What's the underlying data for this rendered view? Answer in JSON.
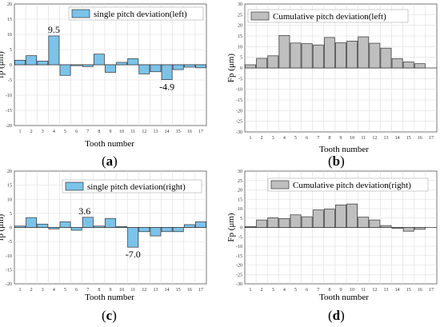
{
  "colors": {
    "blue": "#7cc3ea",
    "gray": "#bfbfbf",
    "grid": "#dddddd",
    "axis": "#555555"
  },
  "chart_data": [
    {
      "id": "a",
      "type": "bar",
      "legend": "single pitch deviation(left)",
      "legend_placement": "top-right",
      "color": "blue",
      "xlabel": "Tooth number",
      "ylabel": "fp (μm)",
      "ylim": [
        -20,
        20
      ],
      "yticks": [
        20,
        15,
        10,
        5,
        0,
        -5,
        -10,
        -15,
        -20
      ],
      "categories": [
        "1",
        "2",
        "3",
        "4",
        "5",
        "6",
        "7",
        "8",
        "9",
        "10",
        "11",
        "12",
        "13",
        "14",
        "15",
        "16",
        "17"
      ],
      "values": [
        1.5,
        3.0,
        1.2,
        9.5,
        -3.5,
        -0.3,
        -0.6,
        3.5,
        -2.5,
        0.8,
        2.0,
        -3.0,
        -2.3,
        -4.9,
        -1.6,
        -0.8,
        -1.0
      ],
      "annotations": [
        {
          "index": 3,
          "text": "9.5"
        },
        {
          "index": 13,
          "text": "-4.9"
        }
      ],
      "caption_letter": "a",
      "grid": true
    },
    {
      "id": "b",
      "type": "bar",
      "legend": "Cumulative pitch deviation(left)",
      "legend_placement": "top-left",
      "color": "gray",
      "xlabel": "Tooth number",
      "ylabel": "Fp (μm)",
      "ylim": [
        -30,
        30
      ],
      "yticks": [
        30,
        25,
        20,
        15,
        10,
        5,
        0,
        -5,
        -10,
        -15,
        -20,
        -25,
        -30
      ],
      "categories": [
        "1",
        "2",
        "3",
        "4",
        "5",
        "6",
        "7",
        "8",
        "9",
        "10",
        "11",
        "12",
        "13",
        "14",
        "15",
        "16",
        "17"
      ],
      "values": [
        1.5,
        4.5,
        5.7,
        15.2,
        11.7,
        11.4,
        10.8,
        14.3,
        11.8,
        12.6,
        14.6,
        11.6,
        9.3,
        4.4,
        2.8,
        2.0,
        0
      ],
      "annotations": [],
      "caption_letter": "b",
      "grid": true
    },
    {
      "id": "c",
      "type": "bar",
      "legend": "single pitch deviation(right)",
      "legend_placement": "top-right",
      "color": "blue",
      "xlabel": "Tooth number",
      "ylabel": "fp (μm)",
      "ylim": [
        -20,
        20
      ],
      "yticks": [
        20,
        15,
        10,
        5,
        0,
        -5,
        -10,
        -15,
        -20
      ],
      "categories": [
        "1",
        "2",
        "3",
        "4",
        "5",
        "6",
        "7",
        "8",
        "9",
        "10",
        "11",
        "12",
        "13",
        "14",
        "15",
        "16",
        "17"
      ],
      "values": [
        0.5,
        3.5,
        1.2,
        -0.5,
        2.0,
        -1.0,
        3.6,
        0.5,
        3.2,
        0.3,
        -7.0,
        -1.5,
        -3.0,
        -1.5,
        -1.5,
        1.0,
        2.0
      ],
      "annotations": [
        {
          "index": 6,
          "text": "3.6"
        },
        {
          "index": 10,
          "text": "-7.0"
        }
      ],
      "caption_letter": "c",
      "grid": true
    },
    {
      "id": "d",
      "type": "bar",
      "legend": "Cumulative pitch deviation(right)",
      "legend_placement": "top-left",
      "color": "gray",
      "xlabel": "Tooth number",
      "ylabel": "Fp (μm)",
      "ylim": [
        -30,
        30
      ],
      "yticks": [
        30,
        25,
        20,
        15,
        10,
        5,
        0,
        -5,
        -10,
        -15,
        -20,
        -25,
        -30
      ],
      "categories": [
        "1",
        "2",
        "3",
        "4",
        "5",
        "6",
        "7",
        "8",
        "9",
        "10",
        "11",
        "12",
        "13",
        "14",
        "15",
        "16",
        "17"
      ],
      "values": [
        0.5,
        4.0,
        5.2,
        4.7,
        6.7,
        5.7,
        9.3,
        9.8,
        12.0,
        12.5,
        5.5,
        4.0,
        1.0,
        -0.5,
        -2.0,
        -1.0,
        0
      ],
      "annotations": [],
      "caption_letter": "d",
      "grid": true
    }
  ]
}
